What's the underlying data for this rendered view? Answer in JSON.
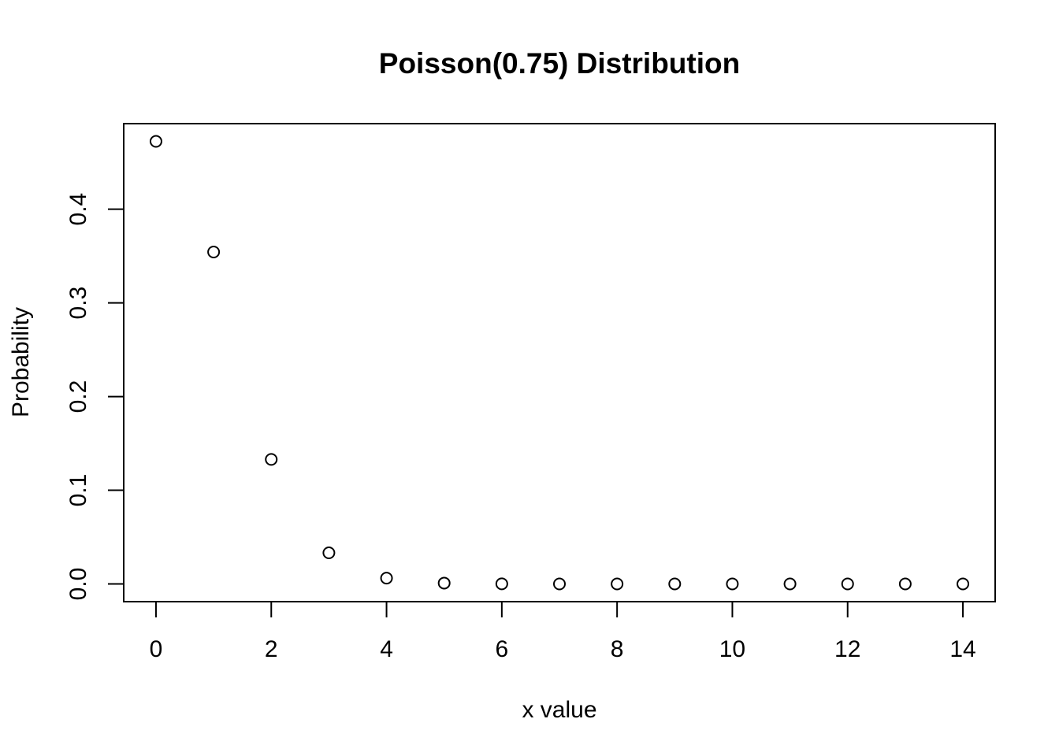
{
  "chart_data": {
    "type": "scatter",
    "title": "Poisson(0.75) Distribution",
    "xlabel": "x value",
    "ylabel": "Probability",
    "xlim": [
      -0.56,
      14.56
    ],
    "ylim": [
      -0.0189,
      0.4913
    ],
    "x_ticks": [
      0,
      2,
      4,
      6,
      8,
      10,
      12,
      14
    ],
    "y_ticks": [
      0.0,
      0.1,
      0.2,
      0.3,
      0.4
    ],
    "x_tick_labels": [
      "0",
      "2",
      "4",
      "6",
      "8",
      "10",
      "12",
      "14"
    ],
    "y_tick_labels": [
      "0.0",
      "0.1",
      "0.2",
      "0.3",
      "0.4"
    ],
    "grid": false,
    "legend": "none",
    "marker": "open-circle",
    "x": [
      0,
      1,
      2,
      3,
      4,
      5,
      6,
      7,
      8,
      9,
      10,
      11,
      12,
      13,
      14
    ],
    "y": [
      0.4724,
      0.3543,
      0.1329,
      0.0332,
      0.0062,
      0.0009,
      0.0001,
      0.0,
      0.0,
      0.0,
      0.0,
      0.0,
      0.0,
      0.0,
      0.0
    ]
  }
}
